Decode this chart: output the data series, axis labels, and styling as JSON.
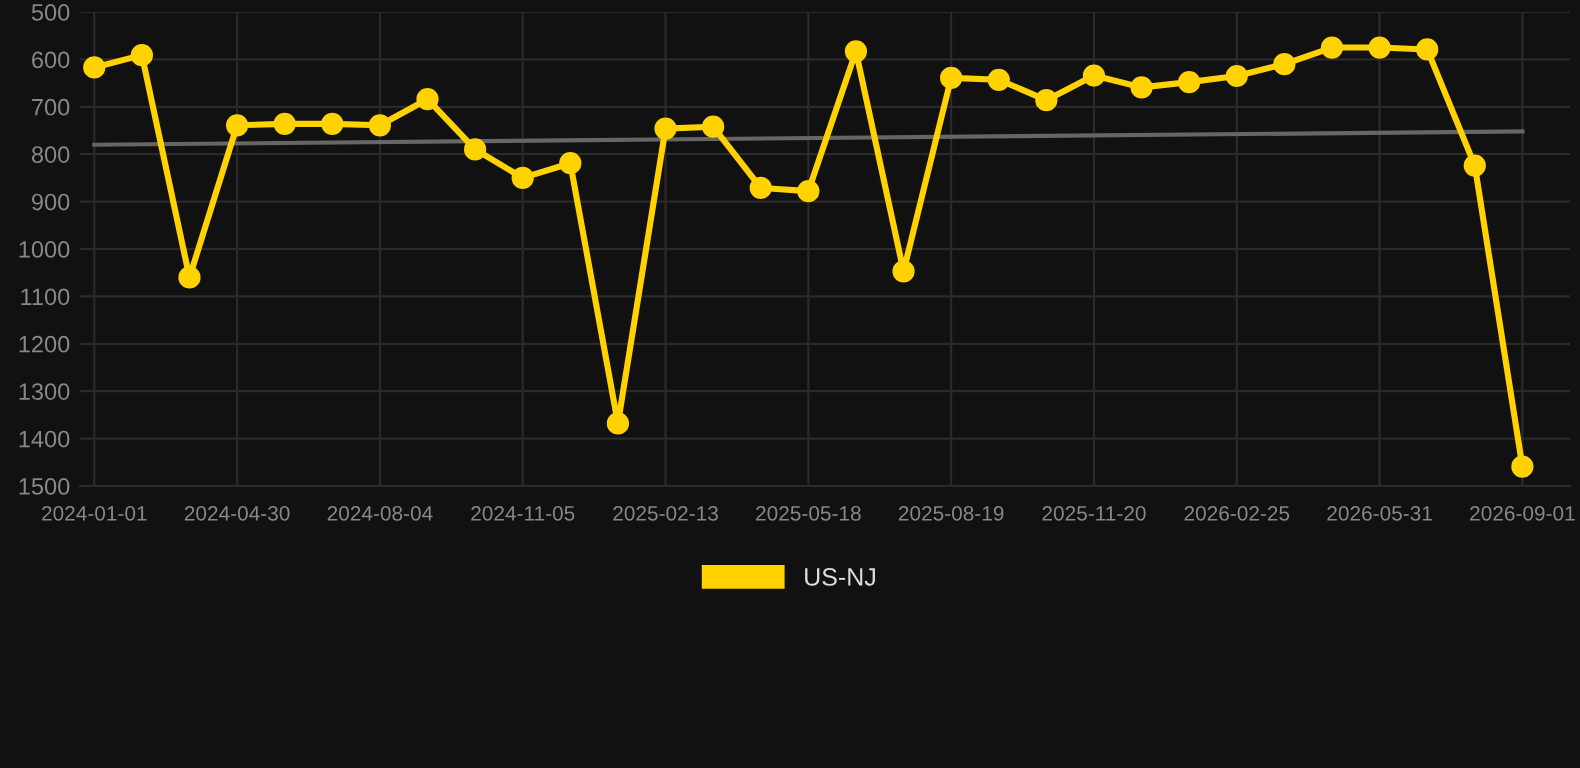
{
  "chart_data": {
    "type": "line",
    "categories": [
      "2024-01-01",
      null,
      null,
      "2024-04-30",
      null,
      null,
      "2024-08-04",
      null,
      null,
      "2024-11-05",
      null,
      null,
      "2025-02-13",
      null,
      null,
      "2025-05-18",
      null,
      null,
      "2025-08-19",
      null,
      null,
      "2025-11-20",
      null,
      null,
      "2026-02-25",
      null,
      null,
      "2026-05-31",
      null,
      null,
      "2026-09-01"
    ],
    "series": [
      {
        "name": "US-NJ",
        "color": "#ffd200",
        "marker": "circle",
        "values": [
          617,
          591,
          1060,
          739,
          736,
          736,
          739,
          684,
          790,
          850,
          819,
          1368,
          746,
          742,
          871,
          878,
          583,
          1047,
          639,
          643,
          686,
          634,
          659,
          648,
          635,
          610,
          575,
          575,
          579,
          824,
          1459
        ]
      },
      {
        "type": "line",
        "color": "#666666",
        "marker": "none",
        "values": [
          780,
          null,
          null,
          null,
          null,
          null,
          null,
          null,
          null,
          null,
          null,
          null,
          null,
          null,
          null,
          null,
          null,
          null,
          null,
          null,
          null,
          null,
          null,
          null,
          null,
          null,
          null,
          null,
          null,
          null,
          752
        ]
      }
    ],
    "ylim": [
      1500,
      500
    ],
    "yticks": [
      500,
      600,
      700,
      800,
      900,
      1000,
      1100,
      1200,
      1300,
      1400,
      1500
    ],
    "grid": true,
    "legend": "bottom",
    "line_style": "solid"
  }
}
